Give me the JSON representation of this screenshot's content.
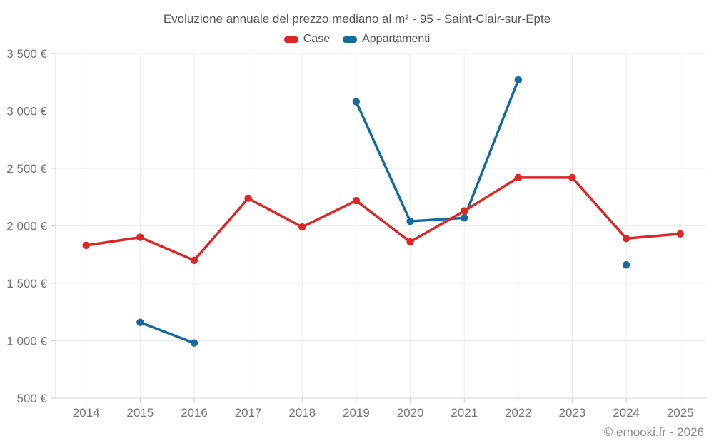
{
  "page": {
    "title": "Evoluzione annuale del prezzo mediano al m² - 95 - Saint-Clair-sur-Epte",
    "footer": "© emooki.fr - 2026"
  },
  "legend": {
    "items": [
      {
        "label": "Case",
        "color": "#dd2727"
      },
      {
        "label": "Appartamenti",
        "color": "#176a9e"
      }
    ]
  },
  "chart_data": {
    "type": "line",
    "title": "Evoluzione annuale del prezzo mediano al m² - 95 - Saint-Clair-sur-Epte",
    "categories": [
      "2014",
      "2015",
      "2016",
      "2017",
      "2018",
      "2019",
      "2020",
      "2021",
      "2022",
      "2023",
      "2024",
      "2025"
    ],
    "series": [
      {
        "name": "Case",
        "color": "#dd2727",
        "values": [
          1830,
          1900,
          1700,
          2240,
          1990,
          2220,
          1860,
          2130,
          2420,
          2420,
          1890,
          1930
        ]
      },
      {
        "name": "Appartamenti",
        "color": "#176a9e",
        "values": [
          null,
          1160,
          980,
          null,
          null,
          3080,
          2040,
          2070,
          3270,
          null,
          1660,
          null
        ]
      }
    ],
    "xlabel": "",
    "ylabel": "",
    "ylim": [
      500,
      3500
    ],
    "ytick_step": 500,
    "ytick_labels": [
      "500 €",
      "1 000 €",
      "1 500 €",
      "2 000 €",
      "2 500 €",
      "3 000 €",
      "3 500 €"
    ],
    "currency": "€",
    "grid": true,
    "legend_position": "top",
    "colors": {
      "grid": "#ebebeb",
      "axis": "#d6d6d6",
      "tick": "#cccccc",
      "label": "#757575"
    }
  }
}
